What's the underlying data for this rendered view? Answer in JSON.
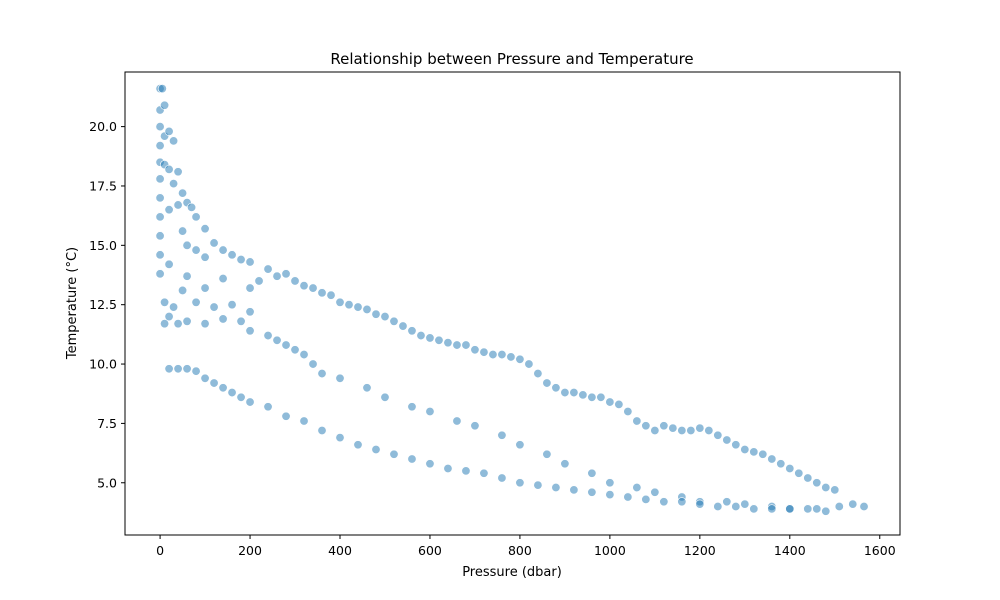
{
  "chart_data": {
    "type": "scatter",
    "title": "Relationship between Pressure and Temperature",
    "xlabel": "Pressure (dbar)",
    "ylabel": "Temperature (°C)",
    "xlim": [
      -78,
      1645
    ],
    "ylim": [
      2.8,
      22.3
    ],
    "xticks": [
      0,
      200,
      400,
      600,
      800,
      1000,
      1200,
      1400,
      1600
    ],
    "xtick_labels": [
      "0",
      "200",
      "400",
      "600",
      "800",
      "1000",
      "1200",
      "1400",
      "1600"
    ],
    "yticks": [
      5.0,
      7.5,
      10.0,
      12.5,
      15.0,
      17.5,
      20.0
    ],
    "ytick_labels": [
      "5.0",
      "7.5",
      "10.0",
      "12.5",
      "15.0",
      "17.5",
      "20.0"
    ],
    "grid": false,
    "legend": false,
    "marker_color": "#1f77b4",
    "marker_alpha": 0.5,
    "series": [
      {
        "x": [
          0,
          0,
          0,
          0,
          0,
          0,
          0,
          0,
          0,
          0,
          0,
          5,
          10,
          10,
          10,
          10,
          10,
          20,
          20,
          20,
          20,
          20,
          30,
          30,
          30,
          40,
          40,
          40,
          50,
          50,
          50,
          60,
          60,
          60,
          60,
          70,
          80,
          80,
          80,
          100,
          100,
          100,
          100,
          120,
          120,
          140,
          140,
          140,
          160,
          160,
          180,
          180,
          200,
          200,
          200,
          200,
          220,
          240,
          240,
          260,
          260,
          280,
          280,
          300,
          300,
          320,
          320,
          340,
          340,
          360,
          360,
          380,
          400,
          400,
          420,
          440,
          460,
          460,
          480,
          500,
          500,
          520,
          540,
          560,
          560,
          580,
          600,
          600,
          620,
          640,
          660,
          660,
          680,
          700,
          700,
          720,
          740,
          760,
          760,
          780,
          800,
          800,
          820,
          840,
          860,
          860,
          880,
          900,
          900,
          920,
          940,
          960,
          960,
          980,
          1000,
          1000,
          1020,
          1040,
          1060,
          1060,
          1080,
          1100,
          1100,
          1120,
          1140,
          1160,
          1160,
          1180,
          1200,
          1200,
          1220,
          1240,
          1260,
          1260,
          1280,
          1300,
          1300,
          1320,
          1340,
          1360,
          1360,
          1380,
          1400,
          1400,
          1420,
          1440,
          1460,
          1460,
          1480,
          1500,
          1510,
          1540,
          1565,
          20,
          40,
          60,
          80,
          100,
          120,
          140,
          160,
          180,
          200,
          240,
          280,
          320,
          360,
          400,
          440,
          480,
          520,
          560,
          600,
          640,
          680,
          720,
          760,
          800,
          840,
          880,
          920,
          960,
          1000,
          1040,
          1080,
          1120,
          1160,
          1200,
          1240,
          1280,
          1320,
          1360,
          1400,
          1440,
          1480
        ],
        "y": [
          21.6,
          20.7,
          20.0,
          19.2,
          18.5,
          17.8,
          17.0,
          16.2,
          15.4,
          14.6,
          13.8,
          21.6,
          20.9,
          19.6,
          18.4,
          12.6,
          11.7,
          19.8,
          18.2,
          16.5,
          14.2,
          12.0,
          19.4,
          17.6,
          12.4,
          18.1,
          16.7,
          11.7,
          17.2,
          15.6,
          13.1,
          16.8,
          15.0,
          13.7,
          11.8,
          16.6,
          16.2,
          14.8,
          12.6,
          15.7,
          14.5,
          13.2,
          11.7,
          15.1,
          12.4,
          14.8,
          13.6,
          11.9,
          14.6,
          12.5,
          14.4,
          11.8,
          14.3,
          13.2,
          12.2,
          11.4,
          13.5,
          14.0,
          11.2,
          13.7,
          11.0,
          13.8,
          10.8,
          13.5,
          10.6,
          13.3,
          10.4,
          13.2,
          10.0,
          13.0,
          9.6,
          12.9,
          12.6,
          9.4,
          12.5,
          12.4,
          12.3,
          9.0,
          12.1,
          12.0,
          8.6,
          11.8,
          11.6,
          11.4,
          8.2,
          11.2,
          11.1,
          8.0,
          11.0,
          10.9,
          10.8,
          7.6,
          10.8,
          10.6,
          7.4,
          10.5,
          10.4,
          10.4,
          7.0,
          10.3,
          10.2,
          6.6,
          10.0,
          9.6,
          9.2,
          6.2,
          9.0,
          8.8,
          5.8,
          8.8,
          8.7,
          8.6,
          5.4,
          8.6,
          8.4,
          5.0,
          8.3,
          8.0,
          7.6,
          4.8,
          7.4,
          7.2,
          4.6,
          7.4,
          7.3,
          7.2,
          4.4,
          7.2,
          7.3,
          4.2,
          7.2,
          7.0,
          6.8,
          4.2,
          6.6,
          6.4,
          4.1,
          6.3,
          6.2,
          6.0,
          4.0,
          5.8,
          5.6,
          3.9,
          5.4,
          5.2,
          5.0,
          3.9,
          4.8,
          4.7,
          4.0,
          4.1,
          4.0,
          9.8,
          9.8,
          9.8,
          9.7,
          9.4,
          9.2,
          9.0,
          8.8,
          8.6,
          8.4,
          8.2,
          7.8,
          7.6,
          7.2,
          6.9,
          6.6,
          6.4,
          6.2,
          6.0,
          5.8,
          5.6,
          5.5,
          5.4,
          5.2,
          5.0,
          4.9,
          4.8,
          4.7,
          4.6,
          4.5,
          4.4,
          4.3,
          4.2,
          4.2,
          4.1,
          4.0,
          4.0,
          3.9,
          3.9,
          3.9,
          3.9,
          3.8
        ]
      }
    ]
  }
}
